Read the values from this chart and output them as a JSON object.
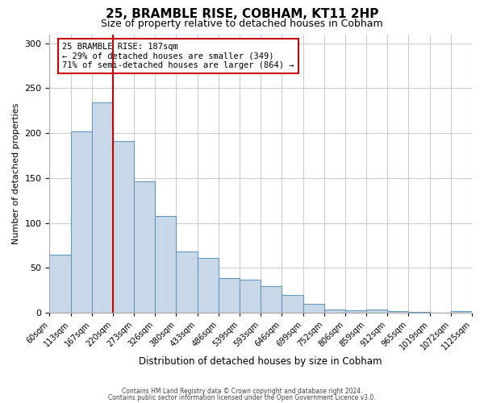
{
  "title": "25, BRAMBLE RISE, COBHAM, KT11 2HP",
  "subtitle": "Size of property relative to detached houses in Cobham",
  "xlabel": "Distribution of detached houses by size in Cobham",
  "ylabel": "Number of detached properties",
  "bin_labels": [
    "60sqm",
    "113sqm",
    "167sqm",
    "220sqm",
    "273sqm",
    "326sqm",
    "380sqm",
    "433sqm",
    "486sqm",
    "539sqm",
    "593sqm",
    "646sqm",
    "699sqm",
    "752sqm",
    "806sqm",
    "859sqm",
    "912sqm",
    "965sqm",
    "1019sqm",
    "1072sqm",
    "1125sqm"
  ],
  "bar_values": [
    65,
    202,
    234,
    191,
    146,
    108,
    68,
    61,
    39,
    37,
    30,
    20,
    10,
    4,
    3,
    4,
    2,
    1,
    0,
    2
  ],
  "bar_color": "#c8d8e8",
  "bar_edge_color": "#6699bb",
  "vline_color": "#cc0000",
  "vline_pos": 2.5,
  "annotation_line1": "25 BRAMBLE RISE: 187sqm",
  "annotation_line2": "← 29% of detached houses are smaller (349)",
  "annotation_line3": "71% of semi-detached houses are larger (864) →",
  "annotation_box_edge_color": "#cc0000",
  "ylim": [
    0,
    310
  ],
  "yticks": [
    0,
    50,
    100,
    150,
    200,
    250,
    300
  ],
  "footer_line1": "Contains HM Land Registry data © Crown copyright and database right 2024.",
  "footer_line2": "Contains public sector information licensed under the Open Government Licence v3.0.",
  "background_color": "#ffffff",
  "grid_color": "#cccccc"
}
